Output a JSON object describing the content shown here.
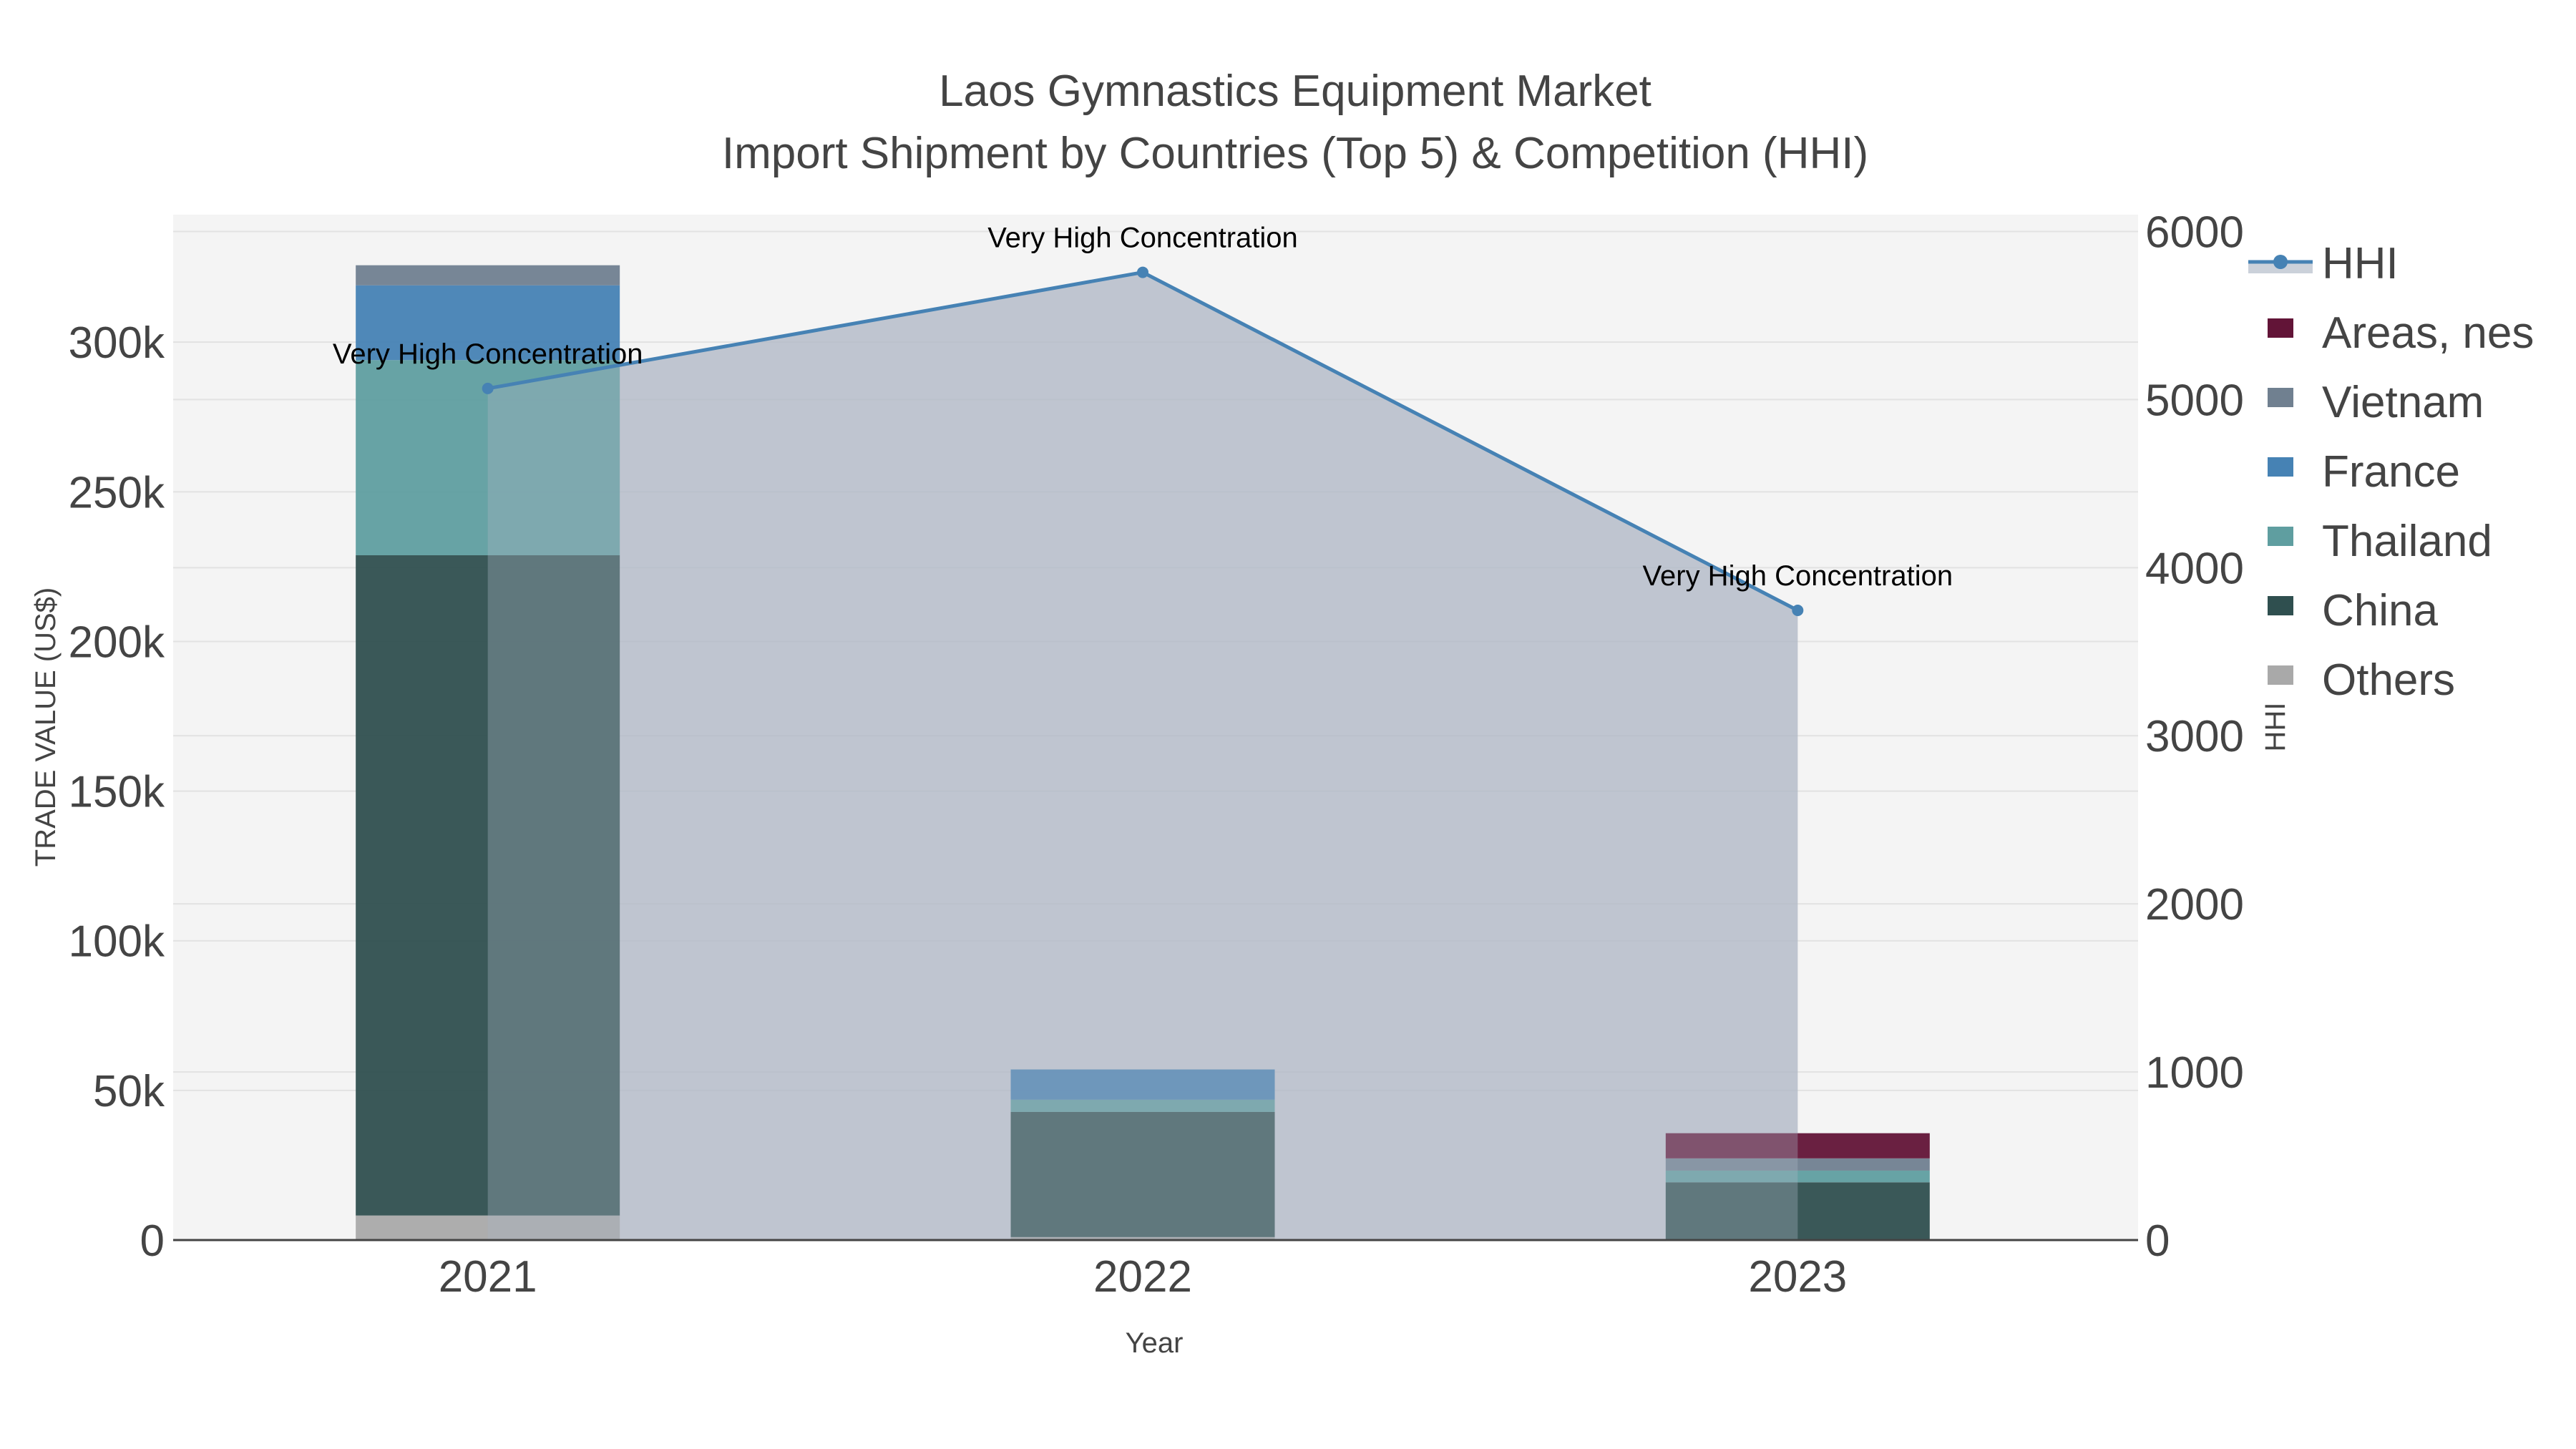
{
  "chart_data": {
    "type": "bar",
    "title": "Laos Gymnastics Equipment Market",
    "subtitle": "Import Shipment by Countries (Top 5) & Competition (HHI)",
    "xlabel": "Year",
    "ylabel": "TRADE VALUE (US$)",
    "y2label": "HHI",
    "categories": [
      "2021",
      "2022",
      "2023"
    ],
    "ylim": [
      0,
      342600
    ],
    "y2lim": [
      0,
      6100
    ],
    "yticks": [
      0,
      50000,
      100000,
      150000,
      200000,
      250000,
      300000
    ],
    "ytick_labels": [
      "0",
      "50k",
      "100k",
      "150k",
      "200k",
      "250k",
      "300k"
    ],
    "y2ticks": [
      0,
      1000,
      2000,
      3000,
      4000,
      5000,
      6000
    ],
    "y2tick_labels": [
      "0",
      "1000",
      "2000",
      "3000",
      "4000",
      "5000",
      "6000"
    ],
    "barmode": "stack",
    "grid": true,
    "legend_position": "right",
    "series": [
      {
        "name": "Others",
        "color": "#a9a9a9",
        "values": [
          8200,
          1000,
          300
        ]
      },
      {
        "name": "China",
        "color": "#2f4f4f",
        "values": [
          220600,
          41800,
          19000
        ]
      },
      {
        "name": "Thailand",
        "color": "#5f9ea0",
        "values": [
          65200,
          4100,
          3900
        ]
      },
      {
        "name": "France",
        "color": "#4682b4",
        "values": [
          25000,
          10100,
          0
        ]
      },
      {
        "name": "Vietnam",
        "color": "#708090",
        "values": [
          6700,
          0,
          4100
        ]
      },
      {
        "name": "Areas, nes",
        "color": "#621437",
        "values": [
          0,
          0,
          8400
        ]
      }
    ],
    "line": {
      "name": "HHI",
      "color": "#4682b4",
      "fill_color": "rgba(176,184,198,0.65)",
      "axis": "y2",
      "values": [
        5066,
        5757,
        3746
      ],
      "annotations": [
        "Very High Concentration",
        "Very High Concentration",
        "Very High Concentration"
      ]
    }
  },
  "legend": {
    "items": [
      {
        "label": "HHI",
        "kind": "line",
        "color": "#4682b4"
      },
      {
        "label": "Areas, nes",
        "kind": "box",
        "color": "#621437"
      },
      {
        "label": "Vietnam",
        "kind": "box",
        "color": "#708090"
      },
      {
        "label": "France",
        "kind": "box",
        "color": "#4682b4"
      },
      {
        "label": "Thailand",
        "kind": "box",
        "color": "#5f9ea0"
      },
      {
        "label": "China",
        "kind": "box",
        "color": "#2f4f4f"
      },
      {
        "label": "Others",
        "kind": "box",
        "color": "#a9a9a9"
      }
    ]
  },
  "colors": {
    "plot_bg": "#f4f4f4",
    "grid": "#e2e2e2",
    "axis_line": "#444444"
  }
}
